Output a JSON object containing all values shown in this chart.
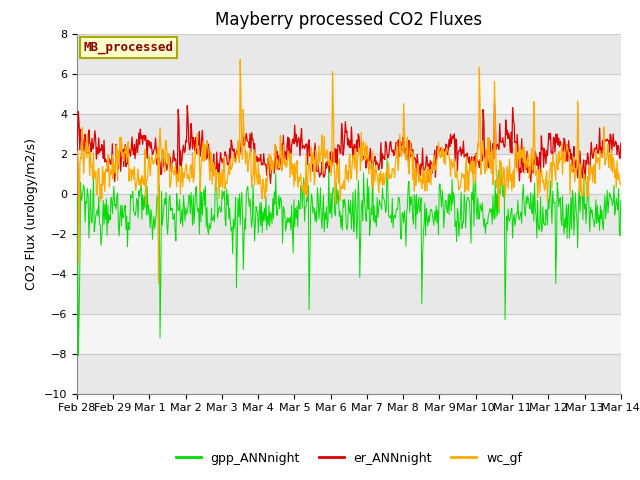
{
  "title": "Mayberry processed CO2 Fluxes",
  "ylabel": "CO2 Flux (urology/m2/s)",
  "ylim": [
    -10,
    8
  ],
  "yticks": [
    -10,
    -8,
    -6,
    -4,
    -2,
    0,
    2,
    4,
    6,
    8
  ],
  "x_tick_labels": [
    "Feb 28",
    "Feb 29",
    "Mar 1",
    "Mar 2",
    "Mar 3",
    "Mar 4",
    "Mar 5",
    "Mar 6",
    "Mar 7",
    "Mar 8",
    "Mar 9",
    "Mar 10",
    "Mar 11",
    "Mar 12",
    "Mar 13",
    "Mar 14"
  ],
  "n_days": 15,
  "line_colors": {
    "gpp_ANNnight": "#00dd00",
    "er_ANNnight": "#dd0000",
    "wc_gf": "#ffaa00"
  },
  "legend_label": "MB_processed",
  "legend_text_color": "#8b0000",
  "legend_box_facecolor": "#ffffcc",
  "legend_box_edgecolor": "#aaaa00",
  "background_color": "#ffffff",
  "band_colors": [
    "#e8e8e8",
    "#f5f5f5"
  ],
  "grid_line_color": "#d0d0d0",
  "title_fontsize": 12,
  "axis_label_fontsize": 9,
  "tick_fontsize": 8,
  "legend_fontsize": 9
}
